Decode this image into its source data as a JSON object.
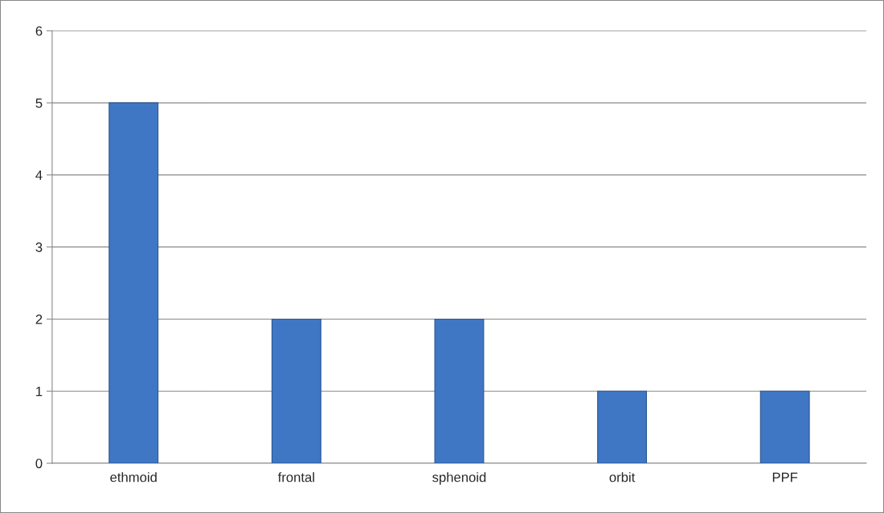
{
  "chart_data": {
    "type": "bar",
    "categories": [
      "ethmoid",
      "frontal",
      "sphenoid",
      "orbit",
      "PPF"
    ],
    "values": [
      5,
      2,
      2,
      1,
      1
    ],
    "color": "#3f77c4",
    "ylim": [
      0,
      6
    ],
    "yticks": [
      0,
      1,
      2,
      3,
      4,
      5,
      6
    ],
    "grid": "y",
    "legend": false
  }
}
